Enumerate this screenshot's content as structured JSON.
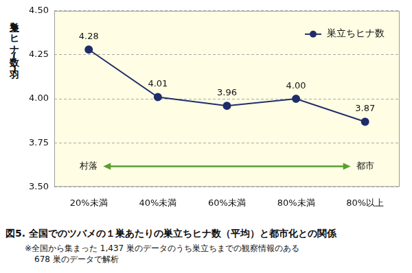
{
  "chart_data": {
    "type": "line",
    "title": "図5. 全国でのツバメの１巣あたりの巣立ちヒナ数（平均）と都市化との関係",
    "note": [
      "※全国から集まった 1,437 巣のデータのうち巣立ちまでの観察情報のある",
      "678 巣のデータで解析"
    ],
    "y_label": "巣立ちヒナ数(羽)",
    "categories": [
      "20%未満",
      "40%未満",
      "60%未満",
      "80%未満",
      "80%以上"
    ],
    "series": [
      {
        "name": "巣立ちヒナ数",
        "color": "#1f2d6b",
        "marker": "circle",
        "values": [
          4.28,
          4.01,
          3.96,
          4.0,
          3.87
        ],
        "value_labels": [
          "4.28",
          "4.01",
          "3.96",
          "4.00",
          "3.87"
        ]
      }
    ],
    "ylim": [
      3.5,
      4.5
    ],
    "yticks": [
      {
        "value": 3.5,
        "label": "3.50"
      },
      {
        "value": 3.75,
        "label": "3.75"
      },
      {
        "value": 4.0,
        "label": "4.00"
      },
      {
        "value": 4.25,
        "label": "4.25"
      },
      {
        "value": 4.5,
        "label": "4.50"
      }
    ],
    "grid": true,
    "legend": "top-right",
    "data_labels": true,
    "annotations": [
      "村落",
      "都市"
    ]
  }
}
